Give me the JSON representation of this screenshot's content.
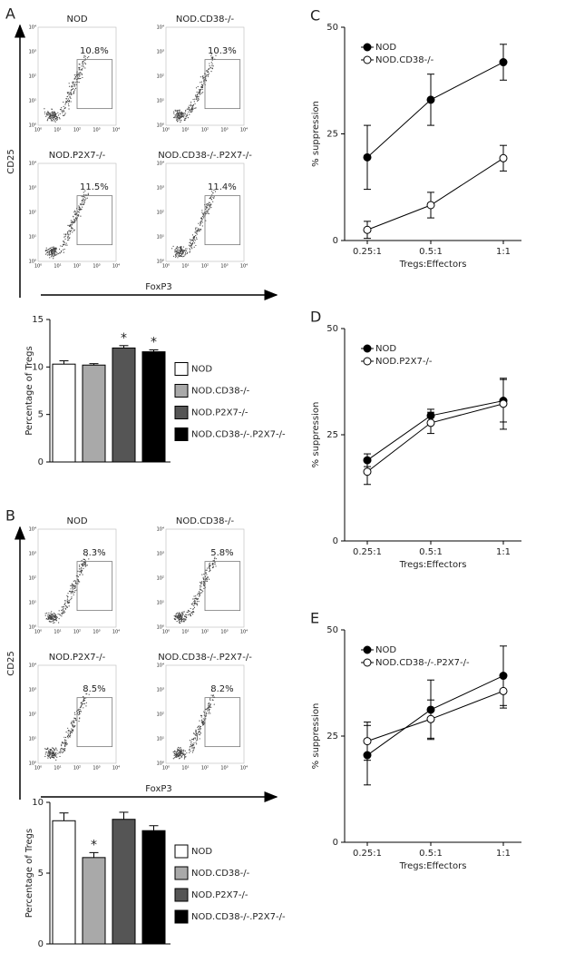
{
  "chart_data": [
    {
      "type": "flow",
      "panel_label": "A",
      "x_label": "FoxP3",
      "y_label": "CD25",
      "axis_ticks": [
        "10⁰",
        "10¹",
        "10²",
        "10³",
        "10⁴"
      ],
      "plots": [
        {
          "title": "NOD",
          "gate_label": "10.8%"
        },
        {
          "title": "NOD.CD38-/-",
          "gate_label": "10.3%"
        },
        {
          "title": "NOD.P2X7-/-",
          "gate_label": "11.5%"
        },
        {
          "title": "NOD.CD38-/-.P2X7-/-",
          "gate_label": "11.4%"
        }
      ]
    },
    {
      "type": "bar",
      "y_label": "Percentage of Tregs",
      "categories": [
        "NOD",
        "NOD.CD38-/-",
        "NOD.P2X7-/-",
        "NOD.CD38-/-.P2X7-/-"
      ],
      "values": [
        10.3,
        10.2,
        12.0,
        11.6
      ],
      "errors": [
        0.35,
        0.15,
        0.25,
        0.2
      ],
      "colors": [
        "#ffffff",
        "#a9a9a9",
        "#555555",
        "#000000"
      ],
      "significance": [
        null,
        null,
        "*",
        "*"
      ],
      "ylim": [
        0,
        15
      ],
      "yticks": [
        0,
        5,
        10,
        15
      ]
    },
    {
      "type": "flow",
      "panel_label": "B",
      "x_label": "FoxP3",
      "y_label": "CD25",
      "axis_ticks": [
        "10⁰",
        "10¹",
        "10²",
        "10³",
        "10⁴"
      ],
      "plots": [
        {
          "title": "NOD",
          "gate_label": "8.3%"
        },
        {
          "title": "NOD.CD38-/-",
          "gate_label": "5.8%"
        },
        {
          "title": "NOD.P2X7-/-",
          "gate_label": "8.5%"
        },
        {
          "title": "NOD.CD38-/-.P2X7-/-",
          "gate_label": "8.2%"
        }
      ]
    },
    {
      "type": "bar",
      "y_label": "Percentage of Tregs",
      "categories": [
        "NOD",
        "NOD.CD38-/-",
        "NOD.P2X7-/-",
        "NOD.CD38-/-.P2X7-/-"
      ],
      "values": [
        8.7,
        6.1,
        8.8,
        8.0
      ],
      "errors": [
        0.55,
        0.35,
        0.5,
        0.35
      ],
      "colors": [
        "#ffffff",
        "#a9a9a9",
        "#555555",
        "#000000"
      ],
      "significance": [
        null,
        "*",
        null,
        null
      ],
      "ylim": [
        0,
        10
      ],
      "yticks": [
        0,
        5,
        10
      ]
    },
    {
      "type": "line",
      "panel_label": "C",
      "x_label": "Tregs:Effectors",
      "y_label": "% suppression",
      "categories": [
        "0.25:1",
        "0.5:1",
        "1:1"
      ],
      "ylim": [
        0,
        50
      ],
      "yticks": [
        0,
        25,
        50
      ],
      "series": [
        {
          "name": "NOD",
          "color": "#000000",
          "values": [
            19.5,
            33.0,
            41.8
          ],
          "errors": [
            7.5,
            6.0,
            4.2
          ]
        },
        {
          "name": "NOD.CD38-/-",
          "color": "#ffffff",
          "values": [
            2.5,
            8.3,
            19.3
          ],
          "errors": [
            2.0,
            3.0,
            3.0
          ]
        }
      ]
    },
    {
      "type": "line",
      "panel_label": "D",
      "x_label": "Tregs:Effectors",
      "y_label": "% suppression",
      "categories": [
        "0.25:1",
        "0.5:1",
        "1:1"
      ],
      "ylim": [
        0,
        50
      ],
      "yticks": [
        0,
        25,
        50
      ],
      "series": [
        {
          "name": "NOD",
          "color": "#000000",
          "values": [
            19.0,
            29.5,
            33.0
          ],
          "errors": [
            1.5,
            1.5,
            5.0
          ]
        },
        {
          "name": "NOD.P2X7-/-",
          "color": "#ffffff",
          "values": [
            16.3,
            27.8,
            32.3
          ],
          "errors": [
            3.0,
            2.5,
            6.0
          ]
        }
      ]
    },
    {
      "type": "line",
      "panel_label": "E",
      "x_label": "Tregs:Effectors",
      "y_label": "% suppression",
      "categories": [
        "0.25:1",
        "0.5:1",
        "1:1"
      ],
      "ylim": [
        0,
        50
      ],
      "yticks": [
        0,
        25,
        50
      ],
      "series": [
        {
          "name": "NOD",
          "color": "#000000",
          "values": [
            20.5,
            31.2,
            39.2
          ],
          "errors": [
            7.0,
            7.0,
            7.0
          ]
        },
        {
          "name": "NOD.CD38-/-.P2X7-/-",
          "color": "#ffffff",
          "values": [
            23.8,
            29.0,
            35.6
          ],
          "errors": [
            4.5,
            4.5,
            4.0
          ]
        }
      ]
    }
  ]
}
